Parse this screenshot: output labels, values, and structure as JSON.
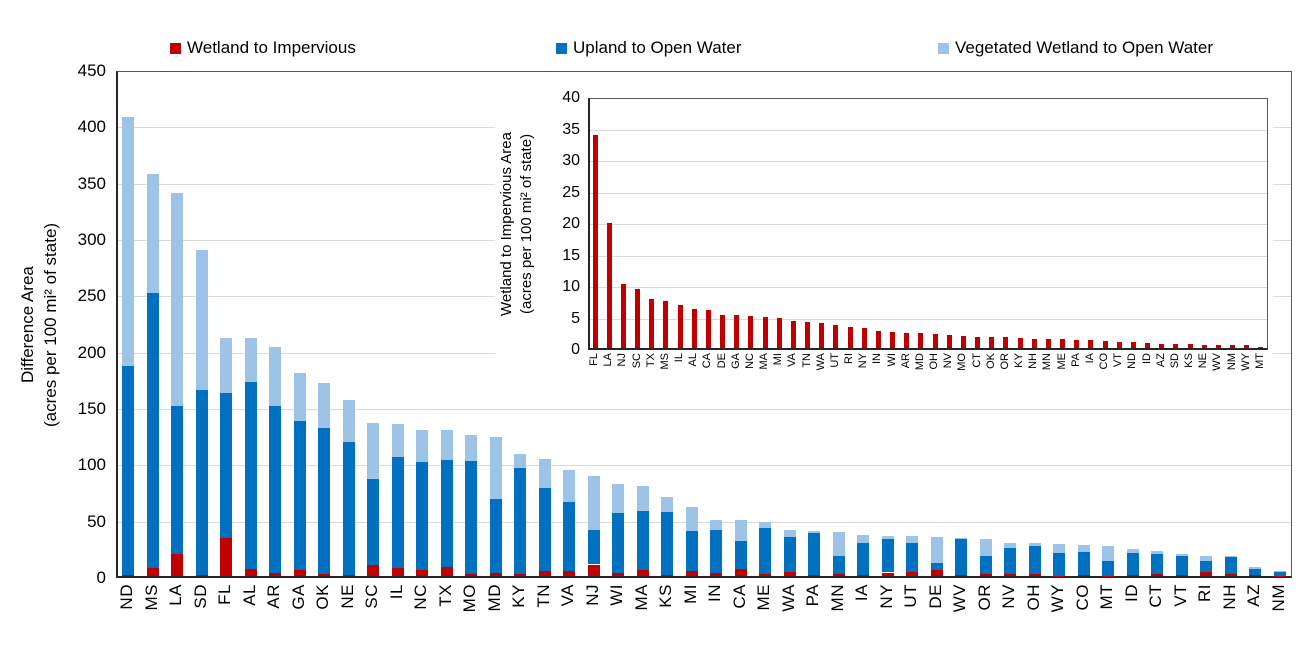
{
  "figure": {
    "legend": {
      "items": [
        {
          "label": "Wetland to Impervious",
          "color": "#C00000"
        },
        {
          "label": "Upland to Open Water",
          "color": "#0070C0"
        },
        {
          "label": "Vegetated Wetland to Open Water",
          "color": "#9DC3E6"
        }
      ]
    }
  },
  "chart_data": [
    {
      "id": "main",
      "type": "bar",
      "stacked": true,
      "ylabel_line1": "Difference Area",
      "ylabel_line2": "(acres per 100 mi² of state)",
      "ylim": [
        0,
        450
      ],
      "yticks": [
        0,
        50,
        100,
        150,
        200,
        250,
        300,
        350,
        400,
        450
      ],
      "grid": true,
      "legend_position": "top",
      "categories": [
        "ND",
        "MS",
        "LA",
        "SD",
        "FL",
        "AL",
        "AR",
        "GA",
        "OK",
        "NE",
        "SC",
        "IL",
        "NC",
        "TX",
        "MO",
        "MD",
        "KY",
        "TN",
        "VA",
        "NJ",
        "WI",
        "MA",
        "KS",
        "MI",
        "IN",
        "CA",
        "ME",
        "WA",
        "PA",
        "MN",
        "IA",
        "NY",
        "UT",
        "DE",
        "WV",
        "OR",
        "NV",
        "OH",
        "WY",
        "CO",
        "MT",
        "ID",
        "CT",
        "VT",
        "RI",
        "NH",
        "AZ",
        "NM"
      ],
      "series": [
        {
          "name": "Wetland to Impervious",
          "color": "#C00000",
          "values": [
            0.9,
            7.4,
            19.8,
            0.7,
            33.8,
            6.2,
            2.4,
            5.2,
            1.7,
            0.5,
            9.4,
            6.8,
            5.1,
            7.8,
            1.9,
            2.4,
            1.6,
            4.1,
            4.3,
            10.2,
            2.5,
            4.9,
            0.6,
            4.7,
            2.7,
            6.1,
            1.4,
            3.9,
            1.3,
            1.4,
            1.2,
            3.1,
            3.7,
            5.3,
            0.5,
            1.7,
            2.0,
            2.2,
            0.4,
            1.1,
            0.15,
            0.8,
            1.8,
            1.0,
            3.3,
            1.5,
            0.7,
            0.4
          ]
        },
        {
          "name": "Upland to Open Water",
          "color": "#0070C0",
          "values": [
            185.1,
            243.6,
            131.2,
            164.3,
            128.2,
            165.8,
            148.6,
            132.8,
            129.3,
            118.5,
            76.6,
            99.2,
            95.9,
            95.2,
            100.1,
            65.6,
            94.4,
            73.9,
            61.7,
            30.8,
            53.5,
            53.1,
            56.4,
            35.3,
            38.3,
            24.9,
            41.6,
            31.1,
            36.7,
            16.5,
            28.3,
            29.3,
            25.8,
            6.3,
            33.0,
            16.2,
            23.1,
            24.0,
            19.6,
            19.9,
            12.9,
            19.2,
            17.7,
            16.5,
            9.7,
            15.5,
            5.8,
            3.6
          ]
        },
        {
          "name": "Vegetated Wetland to Open Water",
          "color": "#9DC3E6",
          "values": [
            221,
            106,
            189,
            124,
            49,
            39,
            52,
            42,
            40,
            37,
            50,
            29,
            29,
            27,
            23,
            55,
            12,
            26,
            28,
            48,
            26,
            22,
            13,
            21,
            9,
            19,
            4.5,
            6,
            1.5,
            20.8,
            6.5,
            3.4,
            5.8,
            22.8,
            0.3,
            14.5,
            4.4,
            3.1,
            8.5,
            6.5,
            14,
            4,
            2.5,
            2,
            5,
            1,
            1.5,
            0.3
          ]
        }
      ]
    },
    {
      "id": "inset",
      "type": "bar",
      "bar_color": "#C00000",
      "ylabel_line1": "Wetland to Impervious Area",
      "ylabel_line2": "(acres per 100 mi² of state)",
      "ylim": [
        0,
        40
      ],
      "yticks": [
        0,
        5,
        10,
        15,
        20,
        25,
        30,
        35,
        40
      ],
      "grid": true,
      "categories": [
        "FL",
        "LA",
        "NJ",
        "SC",
        "TX",
        "MS",
        "IL",
        "AL",
        "CA",
        "DE",
        "GA",
        "NC",
        "MA",
        "MI",
        "VA",
        "TN",
        "WA",
        "UT",
        "RI",
        "NY",
        "IN",
        "WI",
        "AR",
        "MD",
        "OH",
        "NV",
        "MO",
        "CT",
        "OK",
        "OR",
        "KY",
        "NH",
        "MN",
        "ME",
        "PA",
        "IA",
        "CO",
        "VT",
        "ND",
        "ID",
        "AZ",
        "SD",
        "KS",
        "NE",
        "WV",
        "NM",
        "WY",
        "MT"
      ],
      "values": [
        33.8,
        19.8,
        10.2,
        9.4,
        7.8,
        7.4,
        6.8,
        6.2,
        6.1,
        5.3,
        5.2,
        5.1,
        4.9,
        4.7,
        4.3,
        4.1,
        3.9,
        3.7,
        3.3,
        3.1,
        2.7,
        2.5,
        2.4,
        2.4,
        2.2,
        2.0,
        1.9,
        1.8,
        1.7,
        1.7,
        1.6,
        1.5,
        1.4,
        1.4,
        1.3,
        1.2,
        1.1,
        1.0,
        0.9,
        0.8,
        0.7,
        0.7,
        0.6,
        0.5,
        0.5,
        0.4,
        0.4,
        0.15
      ]
    }
  ]
}
